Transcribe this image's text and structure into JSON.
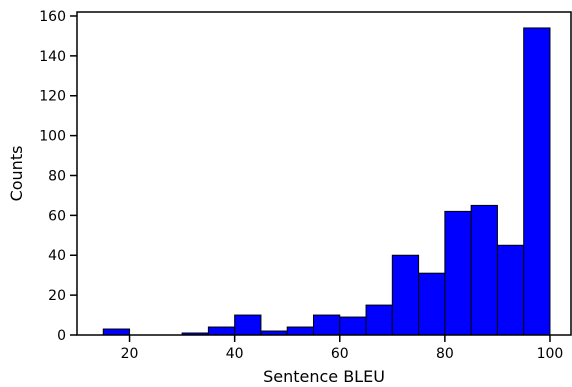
{
  "chart_data": {
    "type": "bar",
    "xlabel": "Sentence BLEU",
    "ylabel": "Counts",
    "xlim": [
      10,
      104
    ],
    "ylim": [
      0,
      162
    ],
    "bar_color": "#0000ff",
    "edge_color": "#000000",
    "grid": false,
    "x_ticks": [
      20,
      40,
      60,
      80,
      100
    ],
    "y_ticks": [
      0,
      20,
      40,
      60,
      80,
      100,
      120,
      140,
      160
    ],
    "bins": [
      {
        "start": 15,
        "end": 20,
        "count": 3
      },
      {
        "start": 20,
        "end": 25,
        "count": 0
      },
      {
        "start": 25,
        "end": 30,
        "count": 0
      },
      {
        "start": 30,
        "end": 35,
        "count": 1
      },
      {
        "start": 35,
        "end": 40,
        "count": 4
      },
      {
        "start": 40,
        "end": 45,
        "count": 10
      },
      {
        "start": 45,
        "end": 50,
        "count": 2
      },
      {
        "start": 50,
        "end": 55,
        "count": 4
      },
      {
        "start": 55,
        "end": 60,
        "count": 10
      },
      {
        "start": 60,
        "end": 65,
        "count": 9
      },
      {
        "start": 65,
        "end": 70,
        "count": 15
      },
      {
        "start": 70,
        "end": 75,
        "count": 40
      },
      {
        "start": 75,
        "end": 80,
        "count": 31
      },
      {
        "start": 80,
        "end": 85,
        "count": 62
      },
      {
        "start": 85,
        "end": 90,
        "count": 65
      },
      {
        "start": 90,
        "end": 95,
        "count": 45
      },
      {
        "start": 95,
        "end": 100,
        "count": 154
      }
    ]
  }
}
